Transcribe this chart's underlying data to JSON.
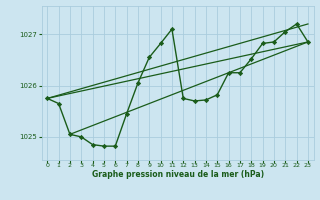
{
  "bg_color": "#cce5f0",
  "plot_bg_color": "#cce5f0",
  "grid_color": "#aaccdd",
  "line_color": "#1a5c1a",
  "marker_color": "#1a5c1a",
  "xlabel": "Graphe pression niveau de la mer (hPa)",
  "xlim": [
    -0.5,
    23.5
  ],
  "ylim": [
    1024.55,
    1027.55
  ],
  "yticks": [
    1025,
    1026,
    1027
  ],
  "xticks": [
    0,
    1,
    2,
    3,
    4,
    5,
    6,
    7,
    8,
    9,
    10,
    11,
    12,
    13,
    14,
    15,
    16,
    17,
    18,
    19,
    20,
    21,
    22,
    23
  ],
  "line1_x": [
    0,
    1,
    2,
    3,
    4,
    5,
    6,
    7,
    8,
    9,
    10,
    11,
    12,
    13,
    14,
    15,
    16,
    17,
    18,
    19,
    20,
    21,
    22,
    23
  ],
  "line1_y": [
    1025.75,
    1025.65,
    1025.05,
    1025.0,
    1024.85,
    1024.82,
    1024.82,
    1025.45,
    1026.05,
    1026.55,
    1026.82,
    1027.1,
    1025.75,
    1025.7,
    1025.72,
    1025.82,
    1026.25,
    1026.25,
    1026.52,
    1026.82,
    1026.85,
    1027.05,
    1027.2,
    1026.85
  ],
  "trend1_x": [
    0,
    23
  ],
  "trend1_y": [
    1025.75,
    1026.85
  ],
  "trend2_x": [
    0,
    23
  ],
  "trend2_y": [
    1025.75,
    1027.2
  ],
  "trend3_x": [
    2,
    23
  ],
  "trend3_y": [
    1025.05,
    1026.85
  ]
}
